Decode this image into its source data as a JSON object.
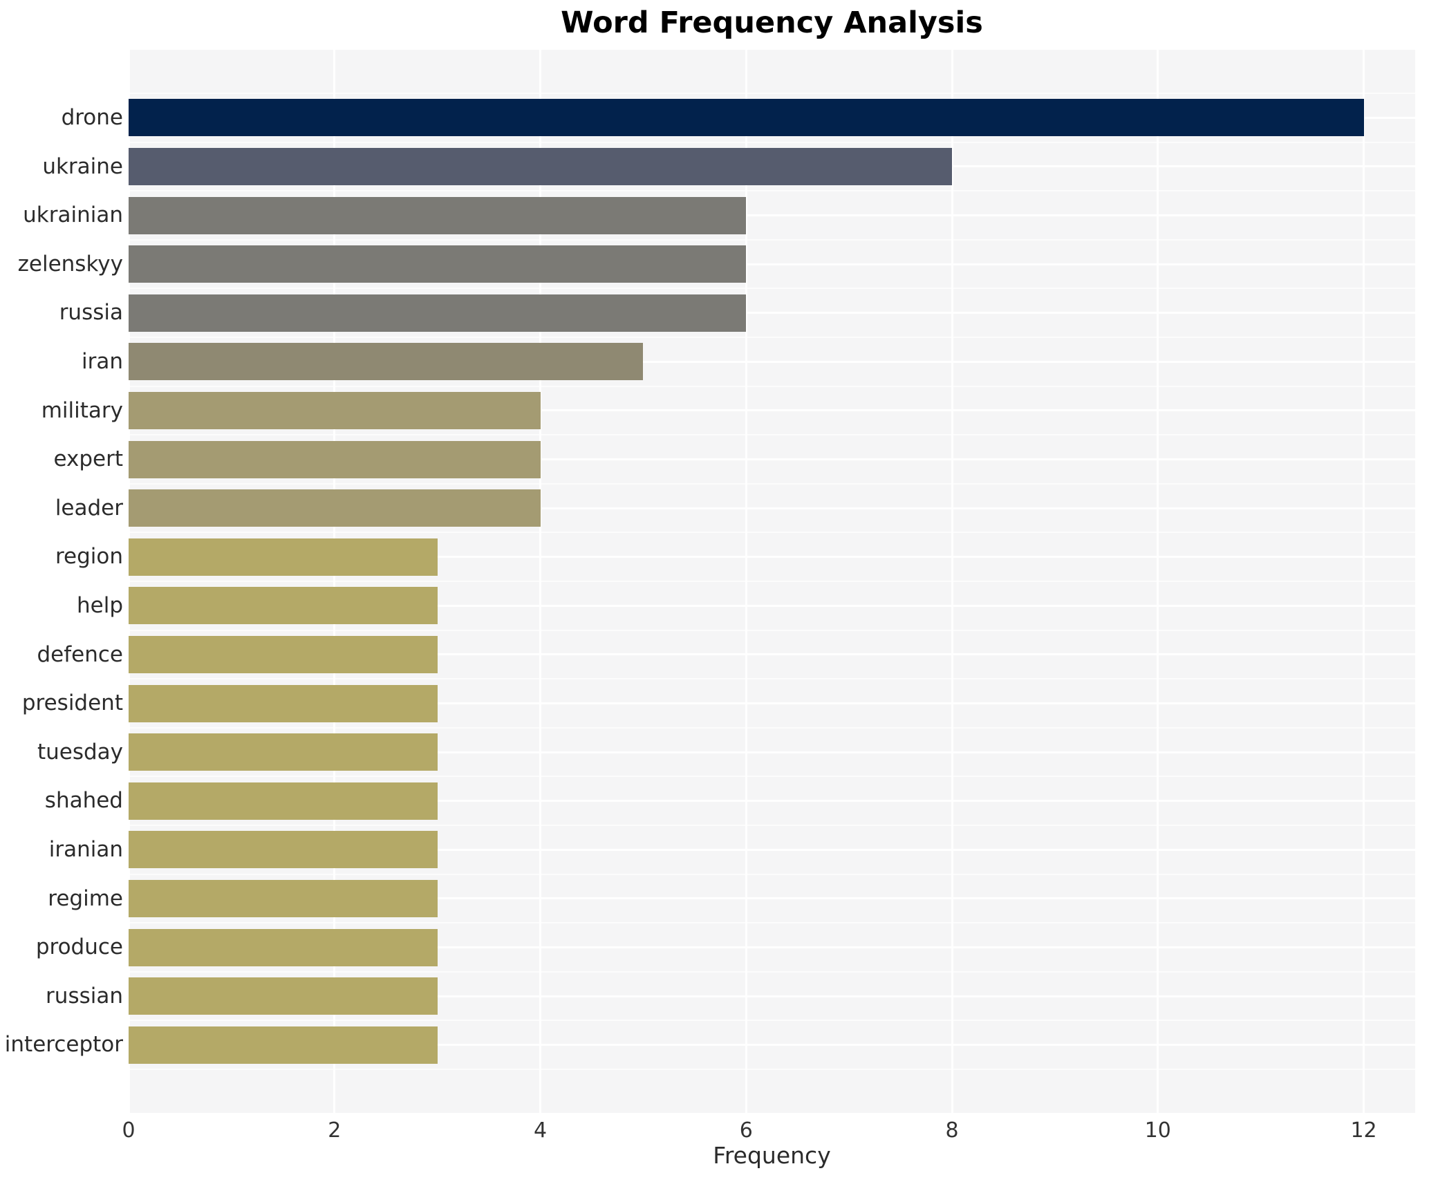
{
  "title": "Word Frequency Analysis",
  "xlabel": "Frequency",
  "chart_data": {
    "type": "bar",
    "orientation": "horizontal",
    "title": "Word Frequency Analysis",
    "xlabel": "Frequency",
    "ylabel": "",
    "categories": [
      "drone",
      "ukraine",
      "ukrainian",
      "zelenskyy",
      "russia",
      "iran",
      "military",
      "expert",
      "leader",
      "region",
      "help",
      "defence",
      "president",
      "tuesday",
      "shahed",
      "iranian",
      "regime",
      "produce",
      "russian",
      "interceptor"
    ],
    "values": [
      12,
      8,
      6,
      6,
      6,
      5,
      4,
      4,
      4,
      3,
      3,
      3,
      3,
      3,
      3,
      3,
      3,
      3,
      3,
      3
    ],
    "bar_colors": [
      "#02224c",
      "#565c6e",
      "#7b7a75",
      "#7b7a75",
      "#7b7a75",
      "#8f8972",
      "#a49b72",
      "#a49b72",
      "#a49b72",
      "#b4a967",
      "#b4a967",
      "#b4a967",
      "#b4a967",
      "#b4a967",
      "#b4a967",
      "#b4a967",
      "#b4a967",
      "#b4a967",
      "#b4a967",
      "#b4a967"
    ],
    "xlim": [
      0,
      12.5
    ],
    "xticks": [
      0,
      2,
      4,
      6,
      8,
      10,
      12
    ],
    "grid": true,
    "legend": false,
    "panel_bg": "#f5f5f6",
    "grid_color": "#ffffff",
    "label_color": "#2b2b2b",
    "title_color": "#000000"
  }
}
